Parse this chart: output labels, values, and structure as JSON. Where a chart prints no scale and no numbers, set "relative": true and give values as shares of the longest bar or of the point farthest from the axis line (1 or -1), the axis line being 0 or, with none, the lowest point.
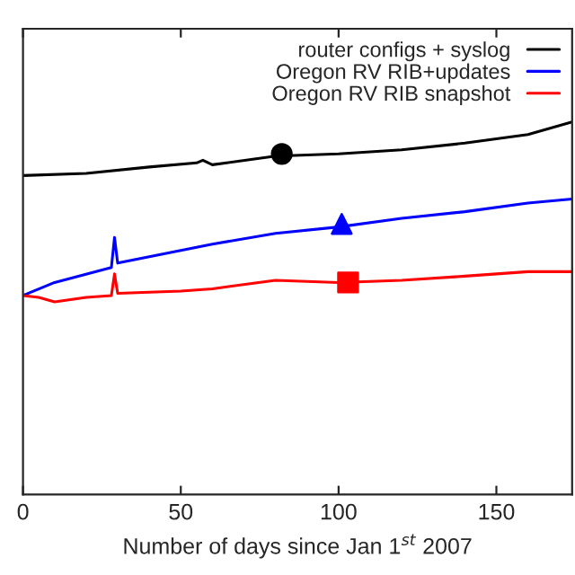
{
  "chart_data": {
    "type": "line",
    "relative": true,
    "xlabel": "Number of days since Jan 1$^{st}$ 2007",
    "xlim": [
      0,
      174
    ],
    "xticks": [
      0,
      50,
      100,
      150
    ],
    "tick_labels": "x",
    "legend": "top right",
    "grid": false,
    "series": [
      {
        "name": "router configs + syslog",
        "color": "#000000",
        "x": [
          0,
          20,
          40,
          55,
          57,
          60,
          80,
          100,
          120,
          140,
          160,
          174
        ],
        "values": [
          0.856,
          0.862,
          0.879,
          0.89,
          0.897,
          0.885,
          0.908,
          0.914,
          0.925,
          0.943,
          0.966,
          1.0
        ]
      },
      {
        "name": "Oregon RV RIB+updates",
        "color": "#0000ff",
        "x": [
          0,
          10,
          28,
          29,
          30,
          40,
          60,
          80,
          100,
          120,
          140,
          160,
          174
        ],
        "values": [
          0.534,
          0.569,
          0.609,
          0.69,
          0.621,
          0.638,
          0.672,
          0.701,
          0.718,
          0.741,
          0.759,
          0.782,
          0.793
        ]
      },
      {
        "name": "Oregon RV RIB snapshot",
        "color": "#ff0000",
        "x": [
          0,
          5,
          10,
          20,
          28,
          29,
          30,
          50,
          60,
          80,
          100,
          120,
          140,
          160,
          174
        ],
        "values": [
          0.534,
          0.529,
          0.517,
          0.529,
          0.534,
          0.592,
          0.54,
          0.546,
          0.552,
          0.575,
          0.569,
          0.575,
          0.586,
          0.598,
          0.598
        ]
      },
      {
        "type": "scatter",
        "marker": "circle",
        "color": "#000000",
        "x": [
          82
        ],
        "values": [
          0.914
        ]
      },
      {
        "type": "scatter",
        "marker": "triangle",
        "color": "#0000ff",
        "x": [
          101
        ],
        "values": [
          0.726
        ]
      },
      {
        "type": "scatter",
        "marker": "square",
        "color": "#ff0000",
        "x": [
          103
        ],
        "values": [
          0.569
        ]
      }
    ]
  }
}
